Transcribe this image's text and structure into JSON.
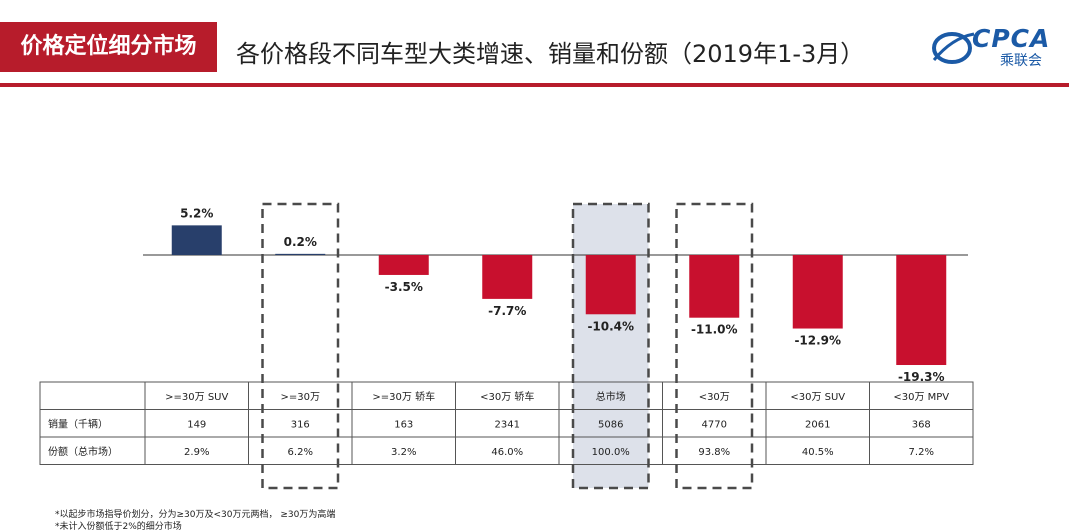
{
  "header": {
    "tag": "价格定位细分市场",
    "title": "各价格段不同车型大类增速、销量和份额（2019年1-3月）",
    "logo_text": "CPCA",
    "logo_sub": "乘联会"
  },
  "colors": {
    "brand_red": "#b71c2b",
    "positive_bar": "#283f6b",
    "negative_bar": "#c8102e",
    "highlight_fill": "#dde1ea"
  },
  "chart_data": {
    "type": "bar",
    "categories": [
      ">=30万 SUV",
      ">=30万",
      ">=30万 轿车",
      "<30万 轿车",
      "总市场",
      "<30万",
      "<30万 SUV",
      "<30万 MPV"
    ],
    "values": [
      5.2,
      0.2,
      -3.5,
      -7.7,
      -10.4,
      -11.0,
      -12.9,
      -19.3
    ],
    "value_labels": [
      "5.2%",
      "0.2%",
      "-3.5%",
      "-7.7%",
      "-10.4%",
      "-11.0%",
      "-12.9%",
      "-19.3%"
    ],
    "dashed_boxes": [
      1,
      4,
      5
    ],
    "shaded_boxes": [
      4
    ],
    "table": {
      "rows": [
        {
          "label": "销量（千辆）",
          "values": [
            "149",
            "316",
            "163",
            "2341",
            "5086",
            "4770",
            "2061",
            "368"
          ]
        },
        {
          "label": "份额（总市场）",
          "values": [
            "2.9%",
            "6.2%",
            "3.2%",
            "46.0%",
            "100.0%",
            "93.8%",
            "40.5%",
            "7.2%"
          ]
        }
      ]
    }
  },
  "footnotes": [
    "*以起步市场指导价划分，分为≥30万及<30万元两档，  ≥30万为高端",
    "*未计入份额低于2%的细分市场"
  ]
}
